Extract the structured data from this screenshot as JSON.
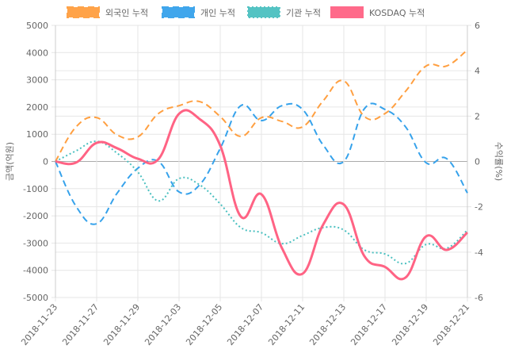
{
  "chart_data": {
    "type": "line",
    "x": [
      "2018-11-23",
      "2018-11-26",
      "2018-11-27",
      "2018-11-28",
      "2018-11-29",
      "2018-11-30",
      "2018-12-03",
      "2018-12-04",
      "2018-12-05",
      "2018-12-06",
      "2018-12-07",
      "2018-12-10",
      "2018-12-11",
      "2018-12-12",
      "2018-12-13",
      "2018-12-14",
      "2018-12-17",
      "2018-12-18",
      "2018-12-19",
      "2018-12-20",
      "2018-12-21"
    ],
    "x_tick_labels": [
      "2018-11-23",
      "2018-11-27",
      "2018-11-29",
      "2018-12-03",
      "2018-12-05",
      "2018-12-07",
      "2018-12-11",
      "2018-12-13",
      "2018-12-17",
      "2018-12-19",
      "2018-12-21"
    ],
    "ylabel_left": "금액(억원)",
    "ylabel_right": "수익률(%)",
    "ylim_left": [
      -5000,
      5000
    ],
    "ylim_right": [
      -6,
      6
    ],
    "yticks_left": [
      "5000",
      "4000",
      "3000",
      "2000",
      "1000",
      "0",
      "-1000",
      "-2000",
      "-3000",
      "-4000",
      "-5000"
    ],
    "yticks_right": [
      "6",
      "4",
      "2",
      "0",
      "-2",
      "-4",
      "-6"
    ],
    "grid": true,
    "legend_position": "top",
    "series": [
      {
        "name": "외국인 누적",
        "axis": "left",
        "color": "#ff9f40",
        "style": "dashed",
        "values": [
          0,
          1270,
          1610,
          970,
          900,
          1760,
          2050,
          2200,
          1650,
          920,
          1610,
          1470,
          1270,
          2230,
          2960,
          1650,
          1760,
          2580,
          3510,
          3510,
          4100
        ]
      },
      {
        "name": "개인 누적",
        "axis": "left",
        "color": "#36a2eb",
        "style": "dashed",
        "values": [
          0,
          -1650,
          -2290,
          -1160,
          -250,
          0,
          -1120,
          -860,
          480,
          2050,
          1500,
          2050,
          1910,
          600,
          0,
          1940,
          1910,
          1270,
          -50,
          100,
          -1160
        ]
      },
      {
        "name": "기관 누적",
        "axis": "left",
        "color": "#4bc0c0",
        "style": "dotted",
        "values": [
          0,
          390,
          740,
          300,
          -390,
          -1450,
          -630,
          -860,
          -1560,
          -2430,
          -2620,
          -3020,
          -2720,
          -2430,
          -2520,
          -3250,
          -3400,
          -3750,
          -3050,
          -3190,
          -2520
        ]
      },
      {
        "name": "KOSDAQ 누적",
        "axis": "right",
        "color": "#ff6384",
        "style": "solid",
        "values": [
          0,
          -0.05,
          0.82,
          0.58,
          0.12,
          0.1,
          2.1,
          1.87,
          0.7,
          -2.43,
          -1.45,
          -3.83,
          -4.95,
          -2.78,
          -1.9,
          -4.18,
          -4.65,
          -5.12,
          -3.3,
          -3.9,
          -3.13
        ]
      }
    ]
  }
}
